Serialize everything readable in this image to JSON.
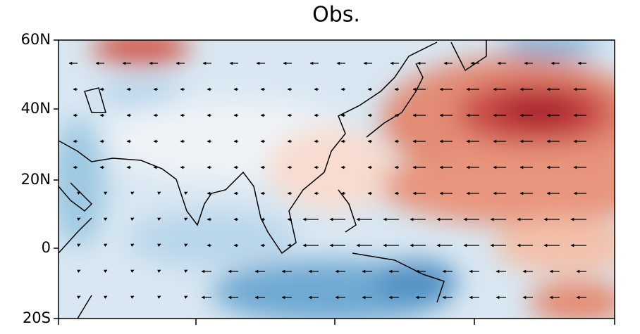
{
  "title": "Obs.",
  "lat_labels": [
    "60N",
    "40N",
    "20N",
    "0",
    "20S"
  ]
}
